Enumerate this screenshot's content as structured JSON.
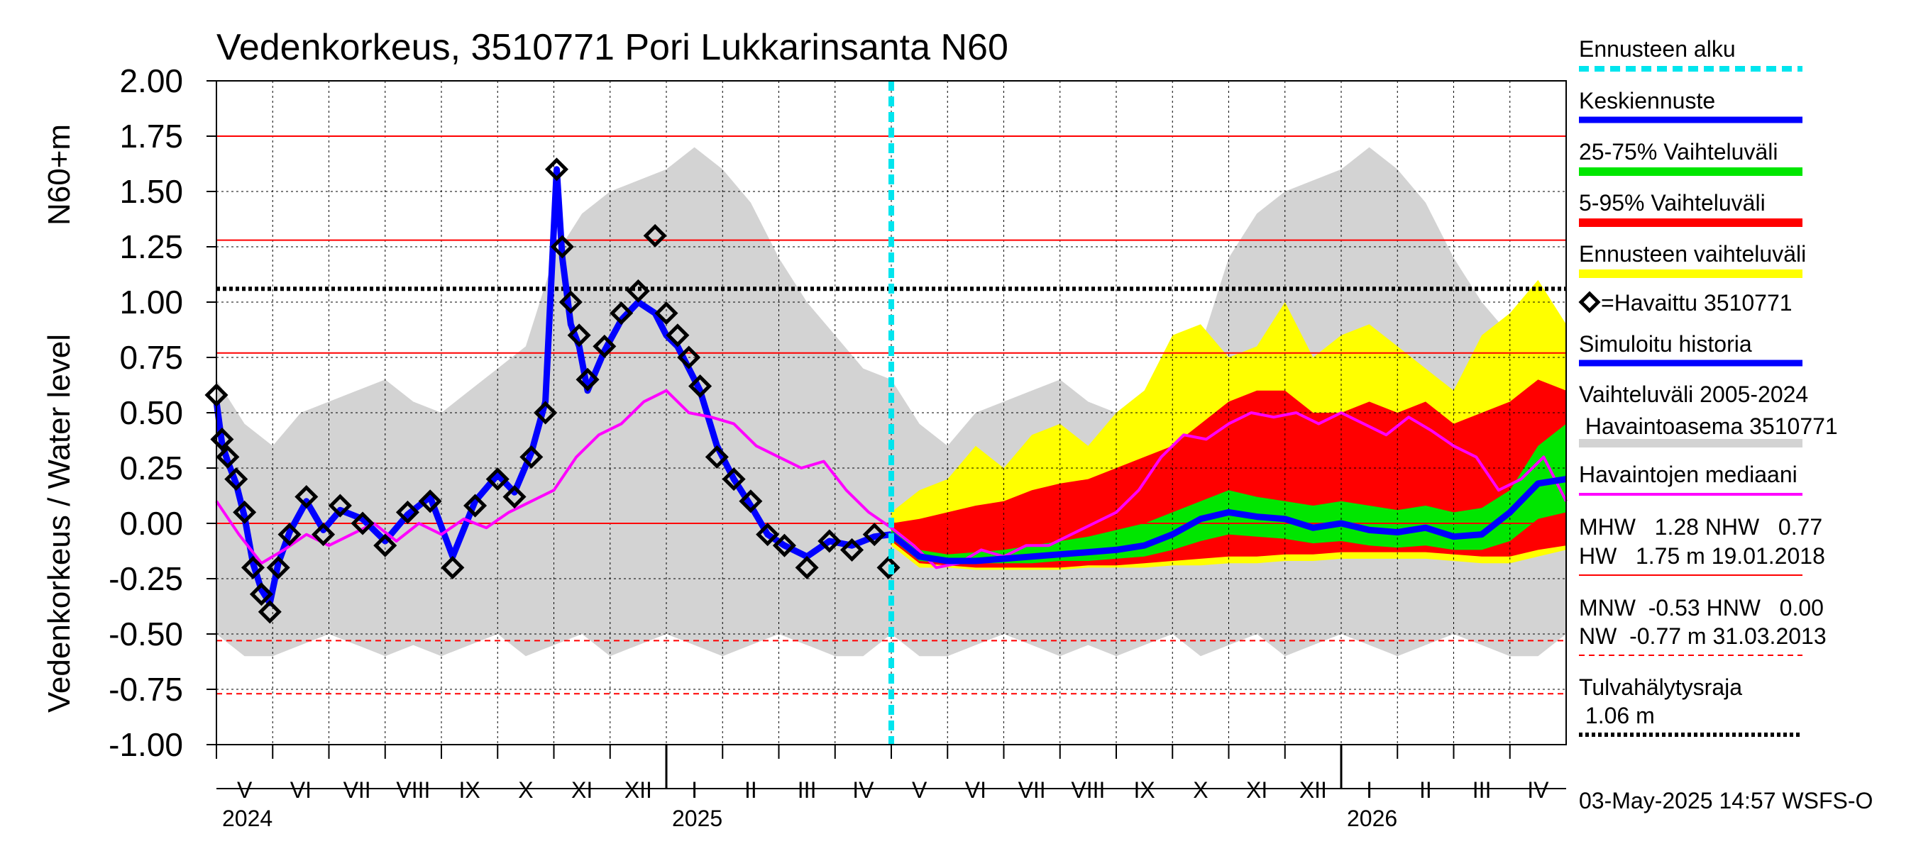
{
  "chart_data": {
    "type": "line",
    "title": "Vedenkorkeus, 3510771 Pori Lukkarinsanta N60",
    "ylabel_outer": "Vedenkorkeus / Water level",
    "ylabel_inner": "N60+m",
    "ylim": [
      -1.0,
      2.0
    ],
    "yticks": [
      "2.00",
      "1.75",
      "1.50",
      "1.25",
      "1.00",
      "0.75",
      "0.50",
      "0.25",
      "0.00",
      "-0.25",
      "-0.50",
      "-0.75",
      "-1.00"
    ],
    "months": [
      "V",
      "VI",
      "VII",
      "VIII",
      "IX",
      "X",
      "XI",
      "XII",
      "I",
      "II",
      "III",
      "IV",
      "V",
      "VI",
      "VII",
      "VIII",
      "IX",
      "X",
      "XI",
      "XII",
      "I",
      "II",
      "III",
      "IV"
    ],
    "years": [
      "2024",
      "2025",
      "2026"
    ],
    "forecast_start_month_index": 12,
    "reference_lines": {
      "HW": 1.75,
      "MHW": 1.28,
      "flood_alarm": 1.06,
      "NHW": 0.77,
      "HNW": 0.0,
      "MNW": -0.53,
      "NW": -0.77
    },
    "series": [
      {
        "name": "Havaittu 3510771",
        "kind": "observed",
        "x": [
          0.0,
          0.1,
          0.2,
          0.35,
          0.5,
          0.65,
          0.8,
          0.95,
          1.1,
          1.3,
          1.6,
          1.9,
          2.2,
          2.6,
          3.0,
          3.4,
          3.8,
          4.2,
          4.6,
          5.0,
          5.3,
          5.6,
          5.85,
          6.05,
          6.15,
          6.3,
          6.45,
          6.6,
          6.9,
          7.2,
          7.5,
          7.8,
          8.0,
          8.2,
          8.4,
          8.6,
          8.9,
          9.2,
          9.5,
          9.8,
          10.1,
          10.5,
          10.9,
          11.3,
          11.7,
          11.95
        ],
        "values": [
          0.58,
          0.38,
          0.3,
          0.2,
          0.05,
          -0.2,
          -0.32,
          -0.4,
          -0.2,
          -0.05,
          0.12,
          -0.05,
          0.08,
          0.0,
          -0.1,
          0.05,
          0.1,
          -0.2,
          0.08,
          0.2,
          0.12,
          0.3,
          0.5,
          1.6,
          1.25,
          1.0,
          0.85,
          0.65,
          0.8,
          0.95,
          1.05,
          1.3,
          0.95,
          0.85,
          0.75,
          0.62,
          0.3,
          0.2,
          0.1,
          -0.05,
          -0.1,
          -0.2,
          -0.08,
          -0.12,
          -0.05,
          -0.2
        ]
      },
      {
        "name": "Simuloitu historia",
        "kind": "simulated",
        "x": [
          0.0,
          0.1,
          0.2,
          0.35,
          0.5,
          0.65,
          0.8,
          0.95,
          1.1,
          1.3,
          1.6,
          1.9,
          2.2,
          2.6,
          3.0,
          3.4,
          3.8,
          4.2,
          4.6,
          5.0,
          5.3,
          5.6,
          5.85,
          6.05,
          6.15,
          6.3,
          6.45,
          6.6,
          6.9,
          7.2,
          7.5,
          7.8,
          8.0,
          8.2,
          8.4,
          8.6,
          8.9,
          9.2,
          9.5,
          9.8,
          10.1,
          10.5,
          10.9,
          11.3,
          11.7,
          12.0
        ],
        "values": [
          0.55,
          0.36,
          0.28,
          0.18,
          0.03,
          -0.18,
          -0.3,
          -0.36,
          -0.18,
          -0.04,
          0.1,
          -0.03,
          0.06,
          0.02,
          -0.08,
          0.04,
          0.12,
          -0.15,
          0.1,
          0.22,
          0.14,
          0.32,
          0.55,
          1.6,
          1.2,
          0.9,
          0.8,
          0.6,
          0.78,
          0.92,
          1.0,
          0.95,
          0.85,
          0.8,
          0.7,
          0.6,
          0.35,
          0.2,
          0.08,
          -0.05,
          -0.1,
          -0.15,
          -0.08,
          -0.1,
          -0.06,
          -0.05
        ]
      },
      {
        "name": "Havaintojen mediaani",
        "kind": "median",
        "x": [
          0,
          0.4,
          0.8,
          1.2,
          1.6,
          2.0,
          2.4,
          2.8,
          3.2,
          3.6,
          4.0,
          4.4,
          4.8,
          5.2,
          5.6,
          6.0,
          6.4,
          6.8,
          7.2,
          7.6,
          8.0,
          8.4,
          8.8,
          9.2,
          9.6,
          10.0,
          10.4,
          10.8,
          11.2,
          11.6,
          12.0,
          12.4,
          12.8,
          13.2,
          13.6,
          14.0,
          14.4,
          14.8,
          15.2,
          15.6,
          16.0,
          16.4,
          16.8,
          17.2,
          17.6,
          18.0,
          18.4,
          18.8,
          19.2,
          19.6,
          20.0,
          20.4,
          20.8,
          21.2,
          21.6,
          22.0,
          22.4,
          22.8,
          23.2,
          23.6,
          24.0
        ],
        "values": [
          0.1,
          -0.05,
          -0.18,
          -0.12,
          -0.05,
          -0.1,
          -0.05,
          0.0,
          -0.08,
          0.0,
          -0.05,
          0.02,
          -0.02,
          0.05,
          0.1,
          0.15,
          0.3,
          0.4,
          0.45,
          0.55,
          0.6,
          0.5,
          0.48,
          0.45,
          0.35,
          0.3,
          0.25,
          0.28,
          0.15,
          0.05,
          -0.02,
          -0.1,
          -0.2,
          -0.18,
          -0.12,
          -0.15,
          -0.1,
          -0.1,
          -0.05,
          0.0,
          0.05,
          0.15,
          0.3,
          0.4,
          0.38,
          0.45,
          0.5,
          0.48,
          0.5,
          0.45,
          0.5,
          0.45,
          0.4,
          0.48,
          0.42,
          0.35,
          0.3,
          0.15,
          0.2,
          0.3,
          0.1
        ]
      },
      {
        "name": "Keskiennuste",
        "kind": "forecast_mean",
        "x": [
          12,
          12.5,
          13,
          13.5,
          14,
          14.5,
          15,
          15.5,
          16,
          16.5,
          17,
          17.5,
          18,
          18.5,
          19,
          19.5,
          20,
          20.5,
          21,
          21.5,
          22,
          22.5,
          23,
          23.5,
          24
        ],
        "values": [
          -0.05,
          -0.15,
          -0.17,
          -0.17,
          -0.16,
          -0.15,
          -0.14,
          -0.13,
          -0.12,
          -0.1,
          -0.05,
          0.02,
          0.05,
          0.03,
          0.02,
          -0.02,
          0.0,
          -0.03,
          -0.04,
          -0.02,
          -0.06,
          -0.05,
          0.05,
          0.18,
          0.2
        ]
      }
    ],
    "bands": [
      {
        "name": "Vaihteluväli 2005-2024",
        "color": "#d3d3d3",
        "x": [
          0,
          0.5,
          1,
          1.5,
          2,
          2.5,
          3,
          3.5,
          4,
          4.5,
          5,
          5.5,
          6,
          6.5,
          7,
          7.5,
          8,
          8.5,
          9,
          9.5,
          10,
          10.5,
          11,
          11.5,
          12,
          12.5,
          13,
          13.5,
          14,
          14.5,
          15,
          15.5,
          16,
          16.5,
          17,
          17.5,
          18,
          18.5,
          19,
          19.5,
          20,
          20.5,
          21,
          21.5,
          22,
          22.5,
          23,
          23.5,
          24
        ],
        "upper": [
          0.65,
          0.45,
          0.35,
          0.5,
          0.55,
          0.6,
          0.65,
          0.55,
          0.5,
          0.6,
          0.7,
          0.8,
          1.2,
          1.4,
          1.5,
          1.55,
          1.6,
          1.7,
          1.6,
          1.45,
          1.2,
          1.0,
          0.85,
          0.7,
          0.65,
          0.45,
          0.35,
          0.5,
          0.55,
          0.6,
          0.65,
          0.55,
          0.5,
          0.6,
          0.7,
          0.8,
          1.2,
          1.4,
          1.5,
          1.55,
          1.6,
          1.7,
          1.6,
          1.45,
          1.2,
          1.0,
          0.85,
          0.75,
          0.6
        ],
        "lower": [
          -0.5,
          -0.6,
          -0.6,
          -0.55,
          -0.5,
          -0.55,
          -0.6,
          -0.55,
          -0.6,
          -0.55,
          -0.5,
          -0.6,
          -0.55,
          -0.5,
          -0.6,
          -0.55,
          -0.5,
          -0.55,
          -0.6,
          -0.55,
          -0.5,
          -0.55,
          -0.6,
          -0.6,
          -0.5,
          -0.6,
          -0.6,
          -0.55,
          -0.5,
          -0.55,
          -0.6,
          -0.55,
          -0.6,
          -0.55,
          -0.5,
          -0.6,
          -0.55,
          -0.5,
          -0.6,
          -0.55,
          -0.5,
          -0.55,
          -0.6,
          -0.55,
          -0.5,
          -0.55,
          -0.6,
          -0.6,
          -0.5
        ]
      },
      {
        "name": "Ennusteen vaihteluväli",
        "color": "#ffff00",
        "x": [
          12,
          12.5,
          13,
          13.5,
          14,
          14.5,
          15,
          15.5,
          16,
          16.5,
          17,
          17.5,
          18,
          18.5,
          19,
          19.5,
          20,
          20.5,
          21,
          21.5,
          22,
          22.5,
          23,
          23.5,
          24
        ],
        "upper": [
          0.05,
          0.15,
          0.2,
          0.35,
          0.25,
          0.4,
          0.45,
          0.35,
          0.5,
          0.6,
          0.85,
          0.9,
          0.75,
          0.8,
          1.0,
          0.75,
          0.85,
          0.9,
          0.8,
          0.7,
          0.6,
          0.85,
          0.95,
          1.1,
          0.9
        ],
        "lower": [
          -0.1,
          -0.2,
          -0.2,
          -0.21,
          -0.21,
          -0.21,
          -0.21,
          -0.2,
          -0.2,
          -0.2,
          -0.19,
          -0.19,
          -0.18,
          -0.18,
          -0.17,
          -0.17,
          -0.16,
          -0.16,
          -0.16,
          -0.16,
          -0.17,
          -0.18,
          -0.18,
          -0.15,
          -0.12
        ]
      },
      {
        "name": "5-95% Vaihteluväli",
        "color": "#ff0000",
        "x": [
          12,
          12.5,
          13,
          13.5,
          14,
          14.5,
          15,
          15.5,
          16,
          16.5,
          17,
          17.5,
          18,
          18.5,
          19,
          19.5,
          20,
          20.5,
          21,
          21.5,
          22,
          22.5,
          23,
          23.5,
          24
        ],
        "upper": [
          0.0,
          0.02,
          0.05,
          0.08,
          0.1,
          0.15,
          0.18,
          0.2,
          0.25,
          0.3,
          0.35,
          0.45,
          0.55,
          0.6,
          0.6,
          0.5,
          0.5,
          0.55,
          0.5,
          0.55,
          0.45,
          0.5,
          0.55,
          0.65,
          0.6
        ],
        "lower": [
          -0.08,
          -0.18,
          -0.19,
          -0.2,
          -0.2,
          -0.2,
          -0.2,
          -0.19,
          -0.19,
          -0.18,
          -0.17,
          -0.16,
          -0.15,
          -0.15,
          -0.14,
          -0.14,
          -0.13,
          -0.13,
          -0.13,
          -0.13,
          -0.14,
          -0.15,
          -0.15,
          -0.12,
          -0.1
        ]
      },
      {
        "name": "25-75% Vaihteluväli",
        "color": "#00e600",
        "x": [
          12,
          12.5,
          13,
          13.5,
          14,
          14.5,
          15,
          15.5,
          16,
          16.5,
          17,
          17.5,
          18,
          18.5,
          19,
          19.5,
          20,
          20.5,
          21,
          21.5,
          22,
          22.5,
          23,
          23.5,
          24
        ],
        "upper": [
          -0.03,
          -0.12,
          -0.14,
          -0.13,
          -0.12,
          -0.1,
          -0.08,
          -0.06,
          -0.03,
          0.0,
          0.05,
          0.1,
          0.15,
          0.12,
          0.1,
          0.08,
          0.1,
          0.08,
          0.06,
          0.08,
          0.05,
          0.07,
          0.15,
          0.35,
          0.45
        ],
        "lower": [
          -0.07,
          -0.17,
          -0.18,
          -0.18,
          -0.18,
          -0.18,
          -0.17,
          -0.17,
          -0.16,
          -0.15,
          -0.12,
          -0.08,
          -0.05,
          -0.06,
          -0.07,
          -0.09,
          -0.08,
          -0.1,
          -0.11,
          -0.1,
          -0.12,
          -0.12,
          -0.08,
          0.02,
          0.05
        ]
      }
    ],
    "legend": {
      "forecast_start": "Ennusteen alku",
      "mean": "Keskiennuste",
      "p25_75": "25-75% Vaihteluväli",
      "p5_95": "5-95% Vaihteluväli",
      "forecast_range": "Ennusteen vaihteluväli",
      "observed": "=Havaittu 3510771",
      "simulated": "Simuloitu historia",
      "range_line1": "Vaihteluväli 2005-2024",
      "range_line2": " Havaintoasema 3510771",
      "median": "Havaintojen mediaani",
      "stats_line1": "MHW   1.28 NHW   0.77",
      "stats_line2": "HW   1.75 m 19.01.2018",
      "stats_line3": "MNW  -0.53 HNW   0.00",
      "stats_line4": "NW  -0.77 m 31.03.2013",
      "alarm_label": "Tulvahälytysraja",
      "alarm_value": " 1.06 m"
    },
    "footer": "03-May-2025 14:57 WSFS-O"
  },
  "colors": {
    "observed": "#000000",
    "simulated": "#0000ff",
    "median": "#ff00ff",
    "forecast_start": "#00e5ee",
    "ref_line": "#ff0000",
    "alarm": "#000000"
  }
}
